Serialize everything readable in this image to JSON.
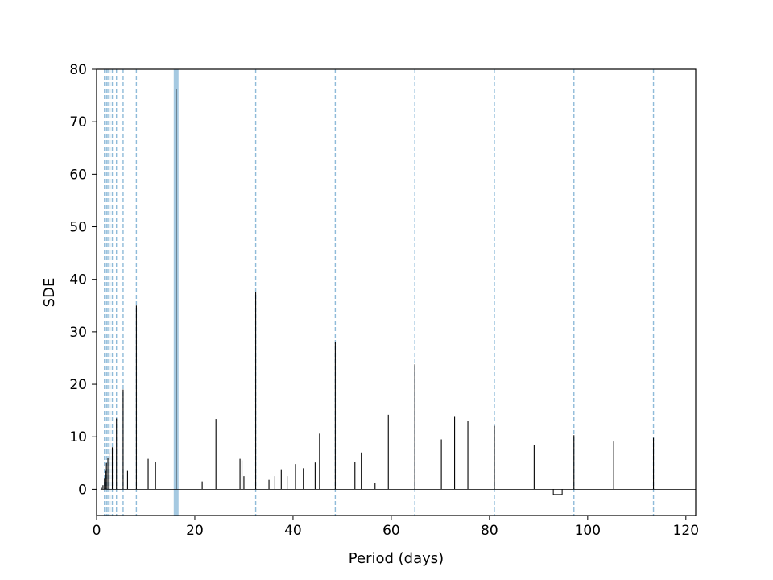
{
  "chart_data": {
    "type": "line",
    "title": "",
    "xlabel": "Period (days)",
    "ylabel": "SDE",
    "xlim": [
      0,
      122
    ],
    "ylim": [
      -5,
      80
    ],
    "xticks": [
      0,
      20,
      40,
      60,
      80,
      100,
      120
    ],
    "yticks": [
      0,
      10,
      20,
      30,
      40,
      50,
      60,
      70,
      80
    ],
    "grid": false,
    "legend": "none",
    "colors": {
      "line": "#000000",
      "marker_lines": "#1f77b4",
      "axes": "#000000",
      "background": "#ffffff"
    },
    "marker_lines": {
      "main_period": 16.2,
      "harmonics": [
        1.6,
        2.0,
        2.3,
        2.7,
        3.2,
        4.05,
        5.4,
        8.1,
        32.4,
        48.6,
        64.8,
        81.0,
        97.2,
        113.4
      ]
    },
    "peaks": [
      {
        "x": 1.0,
        "y": 0.3
      },
      {
        "x": 1.3,
        "y": 0.8
      },
      {
        "x": 1.6,
        "y": 2.0
      },
      {
        "x": 1.8,
        "y": 3.5
      },
      {
        "x": 2.0,
        "y": 5.0
      },
      {
        "x": 2.3,
        "y": 6.0
      },
      {
        "x": 2.7,
        "y": 7.0
      },
      {
        "x": 3.2,
        "y": 8.0
      },
      {
        "x": 4.05,
        "y": 13.5
      },
      {
        "x": 5.4,
        "y": 19.0
      },
      {
        "x": 6.3,
        "y": 3.5
      },
      {
        "x": 8.1,
        "y": 35.0
      },
      {
        "x": 10.5,
        "y": 5.8
      },
      {
        "x": 12.0,
        "y": 5.2
      },
      {
        "x": 16.2,
        "y": 76.2
      },
      {
        "x": 21.5,
        "y": 1.5
      },
      {
        "x": 24.3,
        "y": 13.4
      },
      {
        "x": 29.2,
        "y": 5.8
      },
      {
        "x": 29.6,
        "y": 5.5
      },
      {
        "x": 30.0,
        "y": 2.5
      },
      {
        "x": 32.4,
        "y": 37.5
      },
      {
        "x": 35.1,
        "y": 1.8
      },
      {
        "x": 36.3,
        "y": 2.5
      },
      {
        "x": 37.6,
        "y": 3.8
      },
      {
        "x": 38.8,
        "y": 2.5
      },
      {
        "x": 40.5,
        "y": 4.8
      },
      {
        "x": 42.1,
        "y": 4.0
      },
      {
        "x": 44.5,
        "y": 5.1
      },
      {
        "x": 45.4,
        "y": 10.6
      },
      {
        "x": 48.6,
        "y": 28.0
      },
      {
        "x": 52.6,
        "y": 5.2
      },
      {
        "x": 53.9,
        "y": 7.0
      },
      {
        "x": 56.7,
        "y": 1.2
      },
      {
        "x": 59.4,
        "y": 14.2
      },
      {
        "x": 64.8,
        "y": 23.8
      },
      {
        "x": 70.2,
        "y": 9.5
      },
      {
        "x": 72.9,
        "y": 13.8
      },
      {
        "x": 75.6,
        "y": 13.1
      },
      {
        "x": 81.0,
        "y": 12.1
      },
      {
        "x": 89.1,
        "y": 8.5
      },
      {
        "x": 97.2,
        "y": 10.3
      },
      {
        "x": 105.3,
        "y": 9.1
      },
      {
        "x": 113.4,
        "y": 9.8
      }
    ],
    "dip": {
      "x_start": 93.0,
      "x_end": 94.8,
      "y": -1.0
    }
  }
}
